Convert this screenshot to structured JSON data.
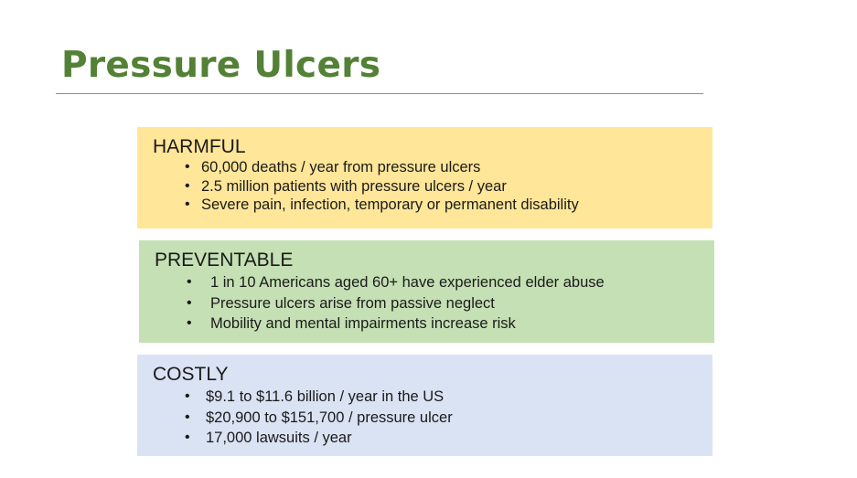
{
  "slide": {
    "title": "Pressure Ulcers"
  },
  "colors": {
    "title": "#538135",
    "harmful_bg": "#ffe699",
    "preventable_bg": "#c5e0b4",
    "costly_bg": "#dae3f3",
    "rule": "#6f93b5"
  },
  "sections": [
    {
      "heading": "HARMFUL",
      "bullets": [
        "60,000 deaths / year from pressure ulcers",
        "2.5 million patients with pressure ulcers / year",
        "Severe pain, infection, temporary or permanent disability"
      ]
    },
    {
      "heading": "PREVENTABLE",
      "bullets": [
        "1 in 10 Americans aged 60+ have experienced elder abuse",
        "Pressure ulcers arise from passive neglect",
        "Mobility and mental impairments increase risk"
      ]
    },
    {
      "heading": "COSTLY",
      "bullets": [
        "$9.1 to $11.6 billion / year in the US",
        "$20,900 to $151,700 / pressure ulcer",
        "17,000 lawsuits / year"
      ]
    }
  ]
}
